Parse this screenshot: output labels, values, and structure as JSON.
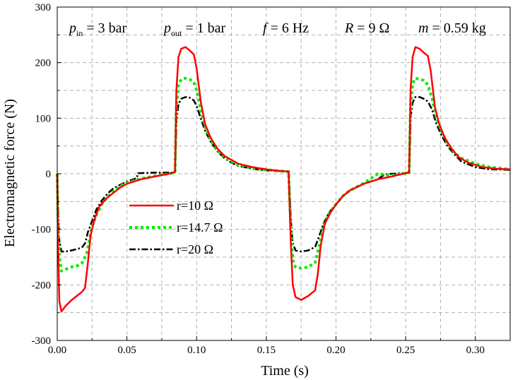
{
  "chart_data": {
    "type": "line",
    "xlabel": "Time (s)",
    "ylabel": "Electromagnetic force (N)",
    "xlim": [
      0,
      0.325
    ],
    "ylim": [
      -300,
      300
    ],
    "x_ticks": [
      "0.00",
      "0.05",
      "0.10",
      "0.15",
      "0.20",
      "0.25",
      "0.30"
    ],
    "y_ticks": [
      "-300",
      "-200",
      "-100",
      "0",
      "100",
      "200",
      "300"
    ],
    "grid": true,
    "legend_position": "center-left",
    "annotations": {
      "p_in": {
        "sym": "p",
        "sub": "in",
        "rest": " = 3 bar"
      },
      "p_out": {
        "sym": "p",
        "sub": "out",
        "rest": " = 1 bar"
      },
      "f": {
        "sym": "f",
        "rest": " = 6 Hz"
      },
      "R": {
        "sym": "R",
        "rest": " = 9 Ω"
      },
      "m": {
        "sym": "m",
        "rest": " = 0.59 kg"
      }
    },
    "series": [
      {
        "name": "r=10 Ω",
        "color": "#ff0000",
        "style": "solid",
        "points": [
          [
            0.0,
            0
          ],
          [
            0.0005,
            -120
          ],
          [
            0.0015,
            -230
          ],
          [
            0.003,
            -248
          ],
          [
            0.006,
            -238
          ],
          [
            0.01,
            -228
          ],
          [
            0.015,
            -218
          ],
          [
            0.018,
            -212
          ],
          [
            0.02,
            -205
          ],
          [
            0.022,
            -160
          ],
          [
            0.024,
            -110
          ],
          [
            0.027,
            -80
          ],
          [
            0.03,
            -60
          ],
          [
            0.035,
            -45
          ],
          [
            0.04,
            -35
          ],
          [
            0.045,
            -25
          ],
          [
            0.05,
            -18
          ],
          [
            0.06,
            -10
          ],
          [
            0.07,
            -5
          ],
          [
            0.08,
            0
          ],
          [
            0.0845,
            3
          ],
          [
            0.0855,
            150
          ],
          [
            0.087,
            210
          ],
          [
            0.089,
            225
          ],
          [
            0.092,
            228
          ],
          [
            0.095,
            222
          ],
          [
            0.098,
            215
          ],
          [
            0.1,
            190
          ],
          [
            0.103,
            130
          ],
          [
            0.106,
            90
          ],
          [
            0.11,
            65
          ],
          [
            0.115,
            45
          ],
          [
            0.12,
            32
          ],
          [
            0.125,
            25
          ],
          [
            0.13,
            18
          ],
          [
            0.14,
            12
          ],
          [
            0.15,
            8
          ],
          [
            0.16,
            5
          ],
          [
            0.166,
            4
          ],
          [
            0.1675,
            -120
          ],
          [
            0.169,
            -200
          ],
          [
            0.171,
            -222
          ],
          [
            0.175,
            -227
          ],
          [
            0.18,
            -220
          ],
          [
            0.185,
            -210
          ],
          [
            0.187,
            -180
          ],
          [
            0.189,
            -130
          ],
          [
            0.192,
            -90
          ],
          [
            0.196,
            -70
          ],
          [
            0.2,
            -55
          ],
          [
            0.205,
            -40
          ],
          [
            0.21,
            -30
          ],
          [
            0.22,
            -18
          ],
          [
            0.23,
            -10
          ],
          [
            0.24,
            -5
          ],
          [
            0.248,
            0
          ],
          [
            0.2525,
            2
          ],
          [
            0.2535,
            150
          ],
          [
            0.255,
            210
          ],
          [
            0.257,
            228
          ],
          [
            0.26,
            225
          ],
          [
            0.263,
            218
          ],
          [
            0.266,
            212
          ],
          [
            0.268,
            185
          ],
          [
            0.271,
            120
          ],
          [
            0.274,
            90
          ],
          [
            0.278,
            65
          ],
          [
            0.283,
            45
          ],
          [
            0.288,
            30
          ],
          [
            0.295,
            20
          ],
          [
            0.305,
            12
          ],
          [
            0.315,
            9
          ],
          [
            0.325,
            8
          ]
        ]
      },
      {
        "name": "r=14.7 Ω",
        "color": "#00ee00",
        "style": "dotted",
        "points": [
          [
            0.0,
            0
          ],
          [
            0.0005,
            -70
          ],
          [
            0.0015,
            -150
          ],
          [
            0.003,
            -175
          ],
          [
            0.006,
            -172
          ],
          [
            0.01,
            -168
          ],
          [
            0.015,
            -165
          ],
          [
            0.018,
            -160
          ],
          [
            0.021,
            -145
          ],
          [
            0.023,
            -120
          ],
          [
            0.025,
            -95
          ],
          [
            0.028,
            -75
          ],
          [
            0.032,
            -55
          ],
          [
            0.036,
            -42
          ],
          [
            0.04,
            -32
          ],
          [
            0.045,
            -22
          ],
          [
            0.05,
            -16
          ],
          [
            0.06,
            -9
          ],
          [
            0.07,
            -4
          ],
          [
            0.08,
            0
          ],
          [
            0.0845,
            2
          ],
          [
            0.0855,
            120
          ],
          [
            0.087,
            160
          ],
          [
            0.089,
            170
          ],
          [
            0.092,
            172
          ],
          [
            0.095,
            170
          ],
          [
            0.098,
            165
          ],
          [
            0.1,
            150
          ],
          [
            0.103,
            115
          ],
          [
            0.106,
            85
          ],
          [
            0.11,
            60
          ],
          [
            0.115,
            42
          ],
          [
            0.12,
            30
          ],
          [
            0.125,
            22
          ],
          [
            0.13,
            16
          ],
          [
            0.14,
            10
          ],
          [
            0.15,
            7
          ],
          [
            0.16,
            5
          ],
          [
            0.166,
            4
          ],
          [
            0.1675,
            -90
          ],
          [
            0.169,
            -155
          ],
          [
            0.171,
            -168
          ],
          [
            0.175,
            -170
          ],
          [
            0.18,
            -168
          ],
          [
            0.185,
            -160
          ],
          [
            0.188,
            -130
          ],
          [
            0.191,
            -95
          ],
          [
            0.195,
            -72
          ],
          [
            0.2,
            -55
          ],
          [
            0.205,
            -40
          ],
          [
            0.21,
            -30
          ],
          [
            0.22,
            -17
          ],
          [
            0.23,
            0
          ],
          [
            0.24,
            -3
          ],
          [
            0.248,
            0
          ],
          [
            0.2525,
            2
          ],
          [
            0.2535,
            120
          ],
          [
            0.255,
            162
          ],
          [
            0.257,
            172
          ],
          [
            0.26,
            170
          ],
          [
            0.263,
            168
          ],
          [
            0.266,
            160
          ],
          [
            0.269,
            135
          ],
          [
            0.272,
            100
          ],
          [
            0.276,
            75
          ],
          [
            0.28,
            55
          ],
          [
            0.285,
            38
          ],
          [
            0.29,
            28
          ],
          [
            0.3,
            18
          ],
          [
            0.31,
            12
          ],
          [
            0.325,
            8
          ]
        ]
      },
      {
        "name": "r=20 Ω",
        "color": "#000000",
        "style": "dashdot",
        "points": [
          [
            0.0,
            0
          ],
          [
            0.0005,
            -60
          ],
          [
            0.0015,
            -120
          ],
          [
            0.003,
            -140
          ],
          [
            0.006,
            -140
          ],
          [
            0.01,
            -138
          ],
          [
            0.015,
            -135
          ],
          [
            0.018,
            -132
          ],
          [
            0.02,
            -125
          ],
          [
            0.022,
            -105
          ],
          [
            0.025,
            -85
          ],
          [
            0.028,
            -65
          ],
          [
            0.032,
            -48
          ],
          [
            0.036,
            -36
          ],
          [
            0.04,
            -27
          ],
          [
            0.045,
            -20
          ],
          [
            0.05,
            -14
          ],
          [
            0.057,
            -8
          ],
          [
            0.058,
            1
          ],
          [
            0.07,
            2
          ],
          [
            0.08,
            2
          ],
          [
            0.0845,
            2
          ],
          [
            0.0855,
            95
          ],
          [
            0.087,
            125
          ],
          [
            0.089,
            135
          ],
          [
            0.092,
            138
          ],
          [
            0.095,
            137
          ],
          [
            0.098,
            132
          ],
          [
            0.1,
            122
          ],
          [
            0.103,
            100
          ],
          [
            0.106,
            78
          ],
          [
            0.11,
            58
          ],
          [
            0.115,
            40
          ],
          [
            0.12,
            28
          ],
          [
            0.125,
            20
          ],
          [
            0.13,
            14
          ],
          [
            0.14,
            9
          ],
          [
            0.15,
            6
          ],
          [
            0.16,
            5
          ],
          [
            0.166,
            4
          ],
          [
            0.1675,
            -80
          ],
          [
            0.169,
            -125
          ],
          [
            0.171,
            -138
          ],
          [
            0.175,
            -140
          ],
          [
            0.18,
            -138
          ],
          [
            0.185,
            -132
          ],
          [
            0.188,
            -112
          ],
          [
            0.191,
            -90
          ],
          [
            0.195,
            -70
          ],
          [
            0.2,
            -55
          ],
          [
            0.205,
            -40
          ],
          [
            0.21,
            -30
          ],
          [
            0.22,
            -18
          ],
          [
            0.23,
            -10
          ],
          [
            0.235,
            -1
          ],
          [
            0.24,
            0
          ],
          [
            0.248,
            1
          ],
          [
            0.2525,
            2
          ],
          [
            0.2535,
            100
          ],
          [
            0.255,
            128
          ],
          [
            0.257,
            138
          ],
          [
            0.26,
            138
          ],
          [
            0.263,
            135
          ],
          [
            0.266,
            130
          ],
          [
            0.269,
            115
          ],
          [
            0.272,
            90
          ],
          [
            0.276,
            68
          ],
          [
            0.28,
            50
          ],
          [
            0.285,
            35
          ],
          [
            0.29,
            22
          ],
          [
            0.3,
            12
          ],
          [
            0.31,
            8
          ],
          [
            0.325,
            7
          ]
        ]
      }
    ]
  }
}
